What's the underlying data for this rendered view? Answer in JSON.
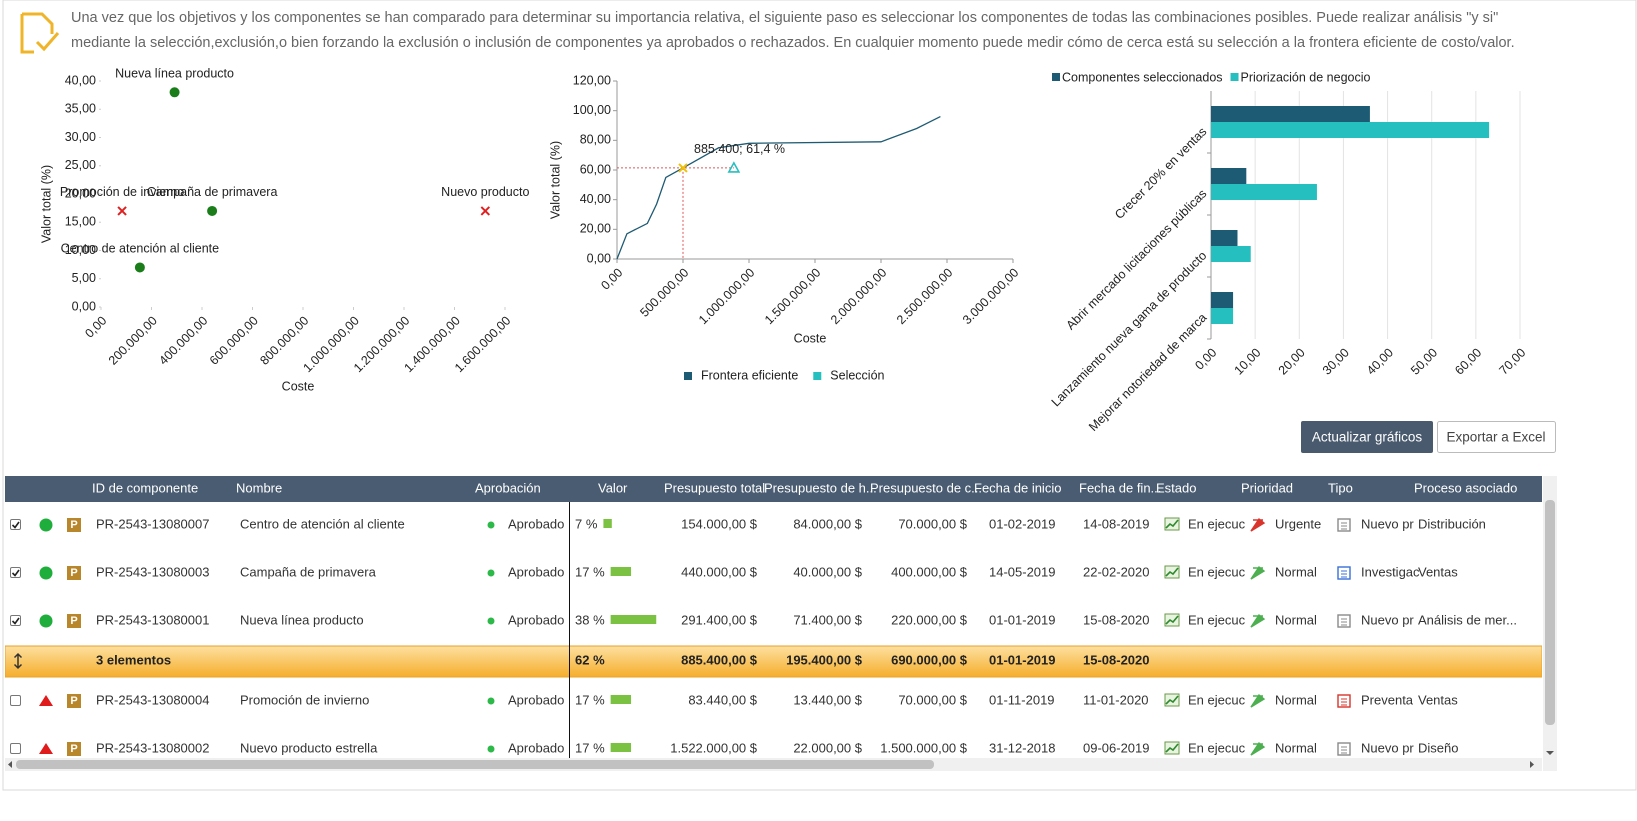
{
  "header": {
    "lines": [
      "Una vez que los objetivos y los componentes se han comparado para determinar su importancia relativa, el siguiente paso es seleccionar los componentes de todas las combinaciones posibles. Puede realizar análisis \"y si\"",
      "mediante la selección,exclusión,o bien forzando la exclusión o inclusión de componentes ya aprobados o rechazados. En cualquier momento puede medir cómo de cerca está su selección a la frontera eficiente de costo/valor."
    ]
  },
  "chart_data": [
    {
      "type": "scatter",
      "x_label": "Coste",
      "y_label": "Valor total (%)",
      "xlim": [
        0,
        1600000
      ],
      "ylim": [
        0,
        40
      ],
      "xticks": [
        {
          "value": 0,
          "label": "0,00"
        },
        {
          "value": 200000,
          "label": "200.000,00"
        },
        {
          "value": 400000,
          "label": "400.000,00"
        },
        {
          "value": 600000,
          "label": "600.000,00"
        },
        {
          "value": 800000,
          "label": "800.000,00"
        },
        {
          "value": 1000000,
          "label": "1.000.000,00"
        },
        {
          "value": 1200000,
          "label": "1.200.000,00"
        },
        {
          "value": 1400000,
          "label": "1.400.000,00"
        },
        {
          "value": 1600000,
          "label": "1.600.000,00"
        }
      ],
      "yticks": [
        {
          "value": 0,
          "label": "0,00"
        },
        {
          "value": 5,
          "label": "5,00"
        },
        {
          "value": 10,
          "label": "10,00"
        },
        {
          "value": 15,
          "label": "15,00"
        },
        {
          "value": 20,
          "label": "20,00"
        },
        {
          "value": 25,
          "label": "25,00"
        },
        {
          "value": 30,
          "label": "30,00"
        },
        {
          "value": 35,
          "label": "35,00"
        },
        {
          "value": 40,
          "label": "40,00"
        }
      ],
      "points": [
        {
          "label": "Nueva línea producto",
          "x": 291400,
          "y": 38,
          "color": "#1a7d1a",
          "marker": "circle"
        },
        {
          "label": "Promoción de invierno",
          "x": 83440,
          "y": 17,
          "color": "#e02020",
          "marker": "cross"
        },
        {
          "label": "Campaña de primavera",
          "x": 440000,
          "y": 17,
          "color": "#1a7d1a",
          "marker": "circle"
        },
        {
          "label": "Nuevo producto",
          "x": 1522000,
          "y": 17,
          "color": "#e02020",
          "marker": "cross"
        },
        {
          "label": "Centro de atención al cliente",
          "x": 154000,
          "y": 7,
          "color": "#1a7d1a",
          "marker": "circle"
        }
      ]
    },
    {
      "type": "line",
      "x_label": "Coste",
      "y_label": "Valor total (%)",
      "xlim": [
        0,
        3000000
      ],
      "ylim": [
        0,
        120
      ],
      "xticks": [
        {
          "value": 0,
          "label": "0,00"
        },
        {
          "value": 500000,
          "label": "500.000,00"
        },
        {
          "value": 1000000,
          "label": "1.000.000,00"
        },
        {
          "value": 1500000,
          "label": "1.500.000,00"
        },
        {
          "value": 2000000,
          "label": "2.000.000,00"
        },
        {
          "value": 2500000,
          "label": "2.500.000,00"
        },
        {
          "value": 3000000,
          "label": "3.000.000,00"
        }
      ],
      "yticks": [
        {
          "value": 0,
          "label": "0,00"
        },
        {
          "value": 20,
          "label": "20,00"
        },
        {
          "value": 40,
          "label": "40,00"
        },
        {
          "value": 60,
          "label": "60,00"
        },
        {
          "value": 80,
          "label": "80,00"
        },
        {
          "value": 100,
          "label": "100,00"
        },
        {
          "value": 120,
          "label": "120,00"
        }
      ],
      "series": [
        {
          "name": "Frontera eficiente",
          "color": "#1d5a73",
          "x": [
            0,
            75000,
            230000,
            300000,
            370000,
            500000,
            770000,
            1000000,
            2000000,
            2270000,
            2450000
          ],
          "values": [
            0,
            17,
            24,
            37,
            55,
            61.4,
            75,
            78,
            79,
            88,
            96
          ]
        },
        {
          "name": "Selección",
          "color": "#26bfbf",
          "x": [
            885400
          ],
          "values": [
            61.4
          ]
        }
      ],
      "highlight": {
        "x": 500000,
        "y": 61.4,
        "color": "#f2c200"
      },
      "annotation": "885.400; 61,4 %"
    },
    {
      "type": "bar",
      "orientation": "horizontal",
      "legend": "top",
      "categories": [
        "Crecer 20% en ventas",
        "Abrir mercado licitaciones públicas",
        "Lanzamiento nueva gama de producto",
        "Mejorar notoriedad de marca"
      ],
      "series": [
        {
          "name": "Componentes seleccionados",
          "color": "#1d5a73",
          "values": [
            36,
            8,
            6,
            5
          ]
        },
        {
          "name": "Priorización de negocio",
          "color": "#26bfbf",
          "values": [
            63,
            24,
            9,
            5
          ]
        }
      ],
      "xlim": [
        0,
        70
      ],
      "xticks": [
        {
          "value": 0,
          "label": "0,00"
        },
        {
          "value": 10,
          "label": "10,00"
        },
        {
          "value": 20,
          "label": "20,00"
        },
        {
          "value": 30,
          "label": "30,00"
        },
        {
          "value": 40,
          "label": "40,00"
        },
        {
          "value": 50,
          "label": "50,00"
        },
        {
          "value": 60,
          "label": "60,00"
        },
        {
          "value": 70,
          "label": "70,00"
        }
      ],
      "grid": true
    }
  ],
  "buttons": [
    "Actualizar gráficos",
    "Exportar a Excel"
  ],
  "table": {
    "columns": [
      "ID de componente",
      "Nombre",
      "Aprobación",
      "Valor",
      "Presupuesto total",
      "Presupuesto de h...",
      "Presupuesto de c...",
      "Fecha de inicio",
      "Fecha de fin...",
      "Estado",
      "Prioridad",
      "Tipo",
      "Proceso asociado"
    ],
    "rows": [
      {
        "selected": true,
        "badge": "P",
        "id": "PR-2543-13080007",
        "nombre": "Centro de atención al cliente",
        "aprobacion": "Aprobado",
        "valor": 7,
        "valor_label": "7 %",
        "total": "154.000,00 $",
        "horas": "84.000,00 $",
        "costes": "70.000,00 $",
        "inicio": "01-02-2019",
        "fin": "14-08-2019",
        "estado": "En ejecuc",
        "prioridad": "Urgente",
        "prioridad_color": "#d9342b",
        "tipo": "Nuevo pr",
        "tipo_color": "#8a8a8a",
        "proceso": "Distribución"
      },
      {
        "selected": true,
        "badge": "P",
        "id": "PR-2543-13080003",
        "nombre": "Campaña de primavera",
        "aprobacion": "Aprobado",
        "valor": 17,
        "valor_label": "17 %",
        "total": "440.000,00 $",
        "horas": "40.000,00 $",
        "costes": "400.000,00 $",
        "inicio": "14-05-2019",
        "fin": "22-02-2020",
        "estado": "En ejecuc",
        "prioridad": "Normal",
        "prioridad_color": "#4caf50",
        "tipo": "Investigac",
        "tipo_color": "#3a6fd8",
        "proceso": "Ventas"
      },
      {
        "selected": true,
        "badge": "P",
        "id": "PR-2543-13080001",
        "nombre": "Nueva línea producto",
        "aprobacion": "Aprobado",
        "valor": 38,
        "valor_label": "38 %",
        "total": "291.400,00 $",
        "horas": "71.400,00 $",
        "costes": "220.000,00 $",
        "inicio": "01-01-2019",
        "fin": "15-08-2020",
        "estado": "En ejecuc",
        "prioridad": "Normal",
        "prioridad_color": "#4caf50",
        "tipo": "Nuevo pr",
        "tipo_color": "#8a8a8a",
        "proceso": "Análisis de mer..."
      },
      {
        "selected": false,
        "badge": "P",
        "id": "PR-2543-13080004",
        "nombre": "Promoción de invierno",
        "aprobacion": "Aprobado",
        "valor": 17,
        "valor_label": "17 %",
        "total": "83.440,00 $",
        "horas": "13.440,00 $",
        "costes": "70.000,00 $",
        "inicio": "01-11-2019",
        "fin": "11-01-2020",
        "estado": "En ejecuc",
        "prioridad": "Normal",
        "prioridad_color": "#4caf50",
        "tipo": "Preventa",
        "tipo_color": "#d9342b",
        "proceso": "Ventas"
      },
      {
        "selected": false,
        "badge": "P",
        "id": "PR-2543-13080002",
        "nombre": "Nuevo producto estrella",
        "aprobacion": "Aprobado",
        "valor": 17,
        "valor_label": "17 %",
        "total": "1.522.000,00 $",
        "horas": "22.000,00 $",
        "costes": "1.500.000,00 $",
        "inicio": "31-12-2018",
        "fin": "09-06-2019",
        "estado": "En ejecuc",
        "prioridad": "Normal",
        "prioridad_color": "#4caf50",
        "tipo": "Nuevo pr",
        "tipo_color": "#8a8a8a",
        "proceso": "Diseño"
      }
    ],
    "summary": {
      "label": "3 elementos",
      "valor_label": "62 %",
      "total": "885.400,00 $",
      "horas": "195.400,00 $",
      "costes": "690.000,00 $",
      "inicio": "01-01-2019",
      "fin": "15-08-2020"
    }
  }
}
